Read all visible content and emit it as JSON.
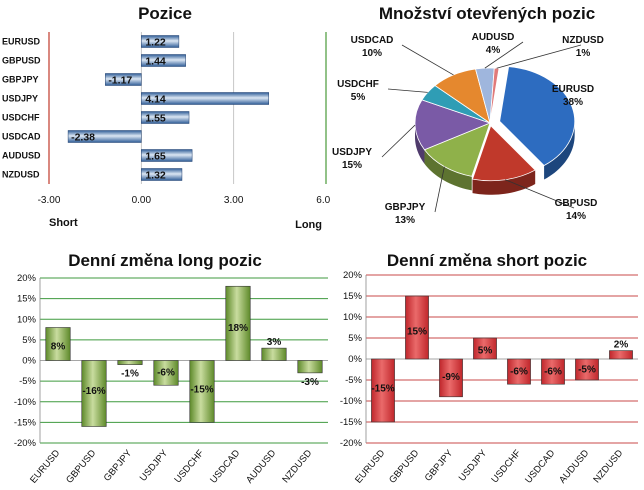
{
  "chart_data": [
    {
      "type": "bar",
      "orientation": "horizontal",
      "title": "Pozice",
      "categories": [
        "EURUSD",
        "GBPUSD",
        "GBPJPY",
        "USDJPY",
        "USDCHF",
        "USDCAD",
        "AUDUSD",
        "NZDUSD"
      ],
      "values": [
        1.22,
        1.44,
        -1.17,
        4.14,
        1.55,
        -2.38,
        1.65,
        1.32
      ],
      "data_labels": [
        "1.22",
        "1.44",
        "-1.17",
        "4.14",
        "1.55",
        "-2.38",
        "1.65",
        "1.32"
      ],
      "xlim": [
        -3,
        6
      ],
      "xticks": [
        "-3.00",
        "0.00",
        "3.00",
        "6.00"
      ],
      "side_labels": {
        "left": "Short",
        "right": "Long"
      },
      "colors": {
        "bar": "#2f5d97",
        "bar_light": "#dbe6f3",
        "left_line": "#c0392b",
        "right_line": "#4a9a3a"
      }
    },
    {
      "type": "pie",
      "title": "Množství otevřených pozic",
      "slices": [
        {
          "label": "EURUSD",
          "pct": 38,
          "text": "38%",
          "color": "#2d6cc0"
        },
        {
          "label": "GBPUSD",
          "pct": 14,
          "text": "14%",
          "color": "#c0392b"
        },
        {
          "label": "GBPJPY",
          "pct": 13,
          "text": "13%",
          "color": "#8fb14a"
        },
        {
          "label": "USDJPY",
          "pct": 15,
          "text": "15%",
          "color": "#7a5aa6"
        },
        {
          "label": "USDCHF",
          "pct": 5,
          "text": "5%",
          "color": "#2f9db5"
        },
        {
          "label": "USDCAD",
          "pct": 10,
          "text": "10%",
          "color": "#e5882e"
        },
        {
          "label": "AUDUSD",
          "pct": 4,
          "text": "4%",
          "color": "#9fb6dd"
        },
        {
          "label": "NZDUSD",
          "pct": 1,
          "text": "1%",
          "color": "#e07a7a"
        }
      ]
    },
    {
      "type": "bar",
      "title": "Denní změna long pozic",
      "categories": [
        "EURUSD",
        "GBPUSD",
        "GBPJPY",
        "USDJPY",
        "USDCHF",
        "USDCAD",
        "AUDUSD",
        "NZDUSD"
      ],
      "values": [
        8,
        -16,
        -1,
        -6,
        -15,
        18,
        3,
        -3
      ],
      "data_labels": [
        "8%",
        "-16%",
        "-1%",
        "-6%",
        "-15%",
        "18%",
        "3%",
        "-3%"
      ],
      "ylim": [
        -20,
        20
      ],
      "yticks": [
        "-20%",
        "-15%",
        "-10%",
        "-5%",
        "0%",
        "5%",
        "10%",
        "15%",
        "20%"
      ],
      "grid": true,
      "colors": {
        "bar": "#5e8a2a",
        "bar_light": "#c9dc9f",
        "grid": "#3f9a3f"
      }
    },
    {
      "type": "bar",
      "title": "Denní změna short pozic",
      "categories": [
        "EURUSD",
        "GBPUSD",
        "GBPJPY",
        "USDJPY",
        "USDCHF",
        "USDCAD",
        "AUDUSD",
        "NZDUSD"
      ],
      "values": [
        -15,
        15,
        -9,
        5,
        -6,
        -6,
        -5,
        2
      ],
      "data_labels": [
        "-15%",
        "15%",
        "-9%",
        "5%",
        "-6%",
        "-6%",
        "-5%",
        "2%"
      ],
      "ylim": [
        -20,
        20
      ],
      "yticks": [
        "-20%",
        "-15%",
        "-10%",
        "-5%",
        "0%",
        "5%",
        "10%",
        "15%",
        "20%"
      ],
      "grid": true,
      "colors": {
        "bar": "#c0262b",
        "bar_light": "#ea6a6a",
        "grid": "#c94a4a"
      }
    }
  ]
}
